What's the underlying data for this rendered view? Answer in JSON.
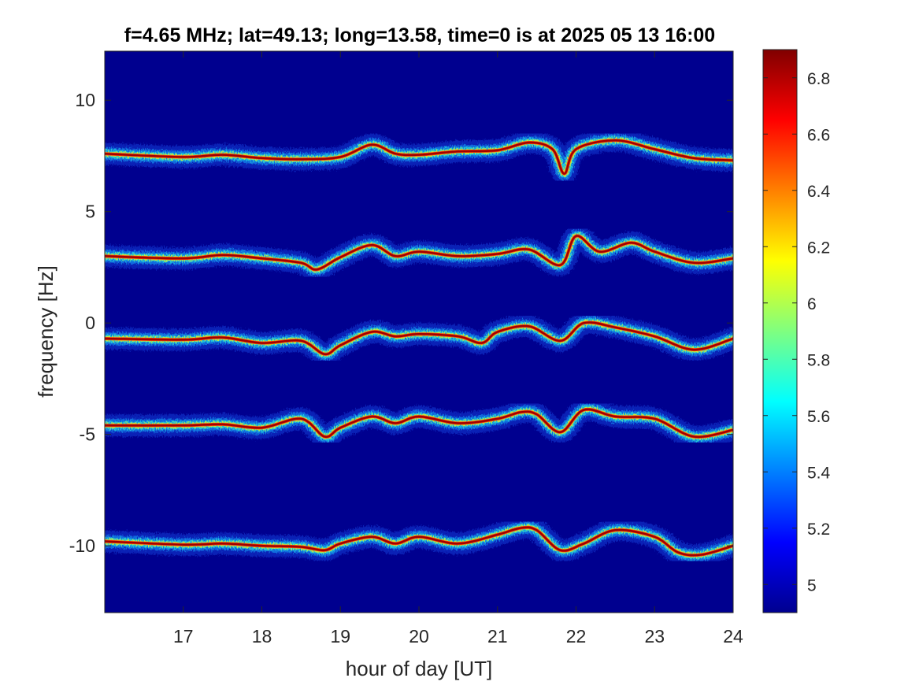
{
  "chart_data": {
    "type": "heatmap",
    "title": "f=4.65 MHz;  lat=49.13; long=13.58, time=0 is at 2025 05 13 16:00",
    "xlabel": "hour of day [UT]",
    "ylabel": "frequency [Hz]",
    "xlim": [
      16,
      24
    ],
    "ylim": [
      -13,
      12.2
    ],
    "xticks": [
      17,
      18,
      19,
      20,
      21,
      22,
      23,
      24
    ],
    "yticks": [
      -10,
      -5,
      0,
      5,
      10
    ],
    "colorbar": {
      "colormap": "jet",
      "clim": [
        4.9,
        6.9
      ],
      "ticks": [
        5,
        5.2,
        5.4,
        5.6,
        5.8,
        6,
        6.2,
        6.4,
        6.6,
        6.8
      ],
      "background_color": "#00008f"
    },
    "traces": [
      {
        "nominal_hz": 7.6,
        "t": [
          16,
          17,
          17.5,
          18,
          18.5,
          19,
          19.4,
          19.7,
          20,
          20.5,
          21,
          21.4,
          21.7,
          21.85,
          22,
          22.5,
          23,
          23.5,
          24
        ],
        "f": [
          7.6,
          7.45,
          7.55,
          7.4,
          7.35,
          7.45,
          8.0,
          7.6,
          7.55,
          7.7,
          7.75,
          8.1,
          7.8,
          6.7,
          7.8,
          8.2,
          7.8,
          7.4,
          7.3
        ]
      },
      {
        "nominal_hz": 3.0,
        "t": [
          16,
          17,
          17.5,
          18,
          18.5,
          18.7,
          19,
          19.4,
          19.7,
          20,
          20.5,
          21,
          21.4,
          21.8,
          22,
          22.3,
          22.7,
          23,
          23.5,
          24
        ],
        "f": [
          3.0,
          2.9,
          3.05,
          2.9,
          2.7,
          2.4,
          2.95,
          3.5,
          3.0,
          3.2,
          3.0,
          3.1,
          3.3,
          2.6,
          3.9,
          3.2,
          3.6,
          3.2,
          2.7,
          2.9
        ]
      },
      {
        "nominal_hz": -0.7,
        "t": [
          16,
          17,
          17.5,
          18,
          18.5,
          18.8,
          19,
          19.4,
          19.7,
          20,
          20.5,
          20.8,
          21,
          21.4,
          21.8,
          22.1,
          22.5,
          23,
          23.5,
          24
        ],
        "f": [
          -0.7,
          -0.75,
          -0.65,
          -0.9,
          -0.8,
          -1.4,
          -1.0,
          -0.4,
          -0.6,
          -0.5,
          -0.6,
          -0.9,
          -0.4,
          -0.15,
          -0.8,
          0.0,
          -0.2,
          -0.6,
          -1.2,
          -0.7
        ]
      },
      {
        "nominal_hz": -4.6,
        "t": [
          16,
          17,
          17.5,
          18,
          18.5,
          18.8,
          19,
          19.4,
          19.7,
          20,
          20.5,
          21,
          21.3,
          21.5,
          21.8,
          22.1,
          22.5,
          23,
          23.5,
          24
        ],
        "f": [
          -4.6,
          -4.6,
          -4.55,
          -4.7,
          -4.3,
          -5.1,
          -4.7,
          -4.2,
          -4.5,
          -4.2,
          -4.5,
          -4.3,
          -4.0,
          -4.1,
          -4.9,
          -3.9,
          -4.2,
          -4.3,
          -5.1,
          -4.8
        ]
      },
      {
        "nominal_hz": -9.8,
        "t": [
          16,
          17,
          17.5,
          18,
          18.5,
          18.8,
          19,
          19.4,
          19.7,
          20,
          20.5,
          21,
          21.3,
          21.5,
          21.8,
          22.1,
          22.5,
          23,
          23.3,
          23.6,
          24
        ],
        "f": [
          -9.8,
          -9.95,
          -9.9,
          -10.0,
          -10.05,
          -10.2,
          -9.9,
          -9.6,
          -9.9,
          -9.6,
          -9.9,
          -9.5,
          -9.2,
          -9.3,
          -10.2,
          -9.9,
          -9.3,
          -9.6,
          -10.3,
          -10.4,
          -10.0
        ]
      }
    ]
  }
}
